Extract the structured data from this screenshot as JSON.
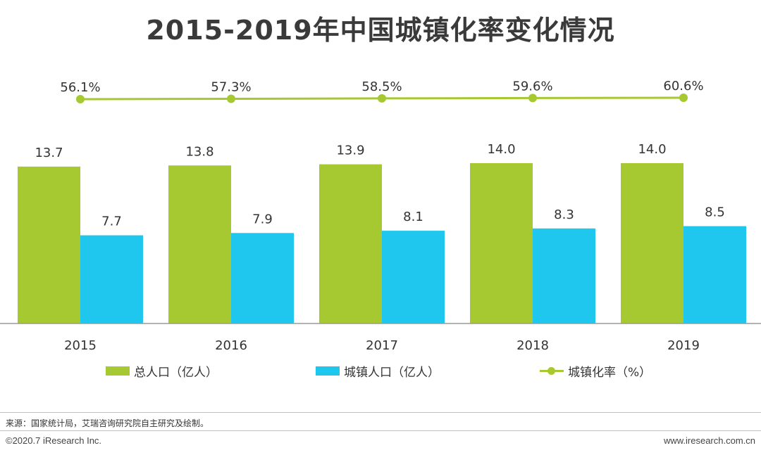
{
  "chart_data": {
    "type": "bar",
    "title": "2015-2019年中国城镇化率变化情况",
    "categories": [
      "2015",
      "2016",
      "2017",
      "2018",
      "2019"
    ],
    "series": [
      {
        "name": "总人口（亿人）",
        "kind": "bar",
        "color": "#a6c831",
        "values": [
          13.7,
          13.8,
          13.9,
          14.0,
          14.0
        ],
        "labels": [
          "13.7",
          "13.8",
          "13.9",
          "14.0",
          "14.0"
        ]
      },
      {
        "name": "城镇人口（亿人）",
        "kind": "bar",
        "color": "#1fc7ef",
        "values": [
          7.7,
          7.9,
          8.1,
          8.3,
          8.5
        ],
        "labels": [
          "7.7",
          "7.9",
          "8.1",
          "8.3",
          "8.5"
        ]
      },
      {
        "name": "城镇化率（%）",
        "kind": "line",
        "color": "#a6c831",
        "values": [
          56.1,
          57.3,
          58.5,
          59.6,
          60.6
        ],
        "labels": [
          "56.1%",
          "57.3%",
          "58.5%",
          "59.6%",
          "60.6%"
        ]
      }
    ],
    "ylim": [
      0,
      16
    ],
    "line_ylim": [
      0,
      70
    ],
    "grid": false,
    "legend_position": "bottom"
  },
  "footer": {
    "source": "来源：国家统计局，艾瑞咨询研究院自主研究及绘制。",
    "copyright": "©2020.7 iResearch Inc.",
    "website": "www.iresearch.com.cn"
  }
}
